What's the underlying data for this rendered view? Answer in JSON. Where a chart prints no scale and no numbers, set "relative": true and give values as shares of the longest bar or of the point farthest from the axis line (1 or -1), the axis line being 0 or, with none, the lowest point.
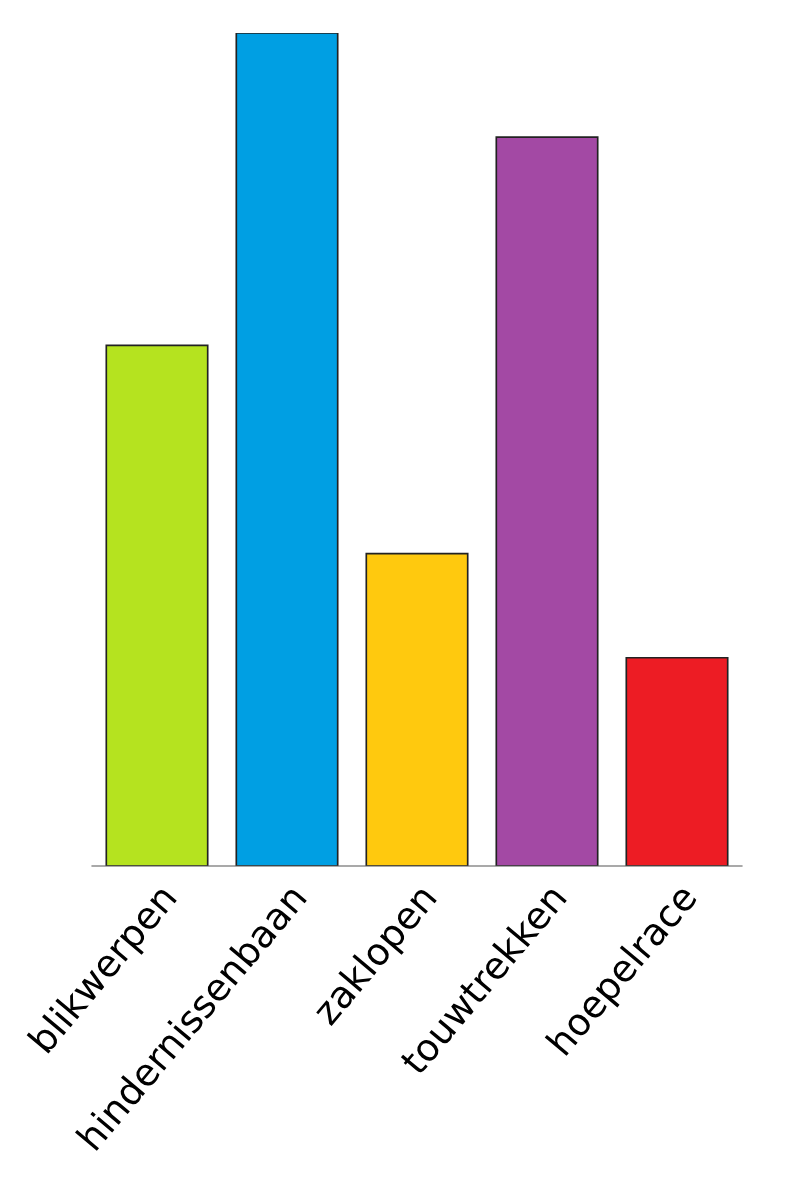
{
  "chart_data": {
    "type": "bar",
    "relative": true,
    "categories": [
      "blikwerpen",
      "hindernissenbaan",
      "zaklopen",
      "touwtrekken",
      "hoepelrace"
    ],
    "values": [
      0.625,
      1,
      0.375,
      0.875,
      0.25
    ],
    "colors": [
      "#b5e31f",
      "#009fe3",
      "#ffc90e",
      "#a349a4",
      "#ed1c24"
    ],
    "grid": false,
    "legend": false
  }
}
